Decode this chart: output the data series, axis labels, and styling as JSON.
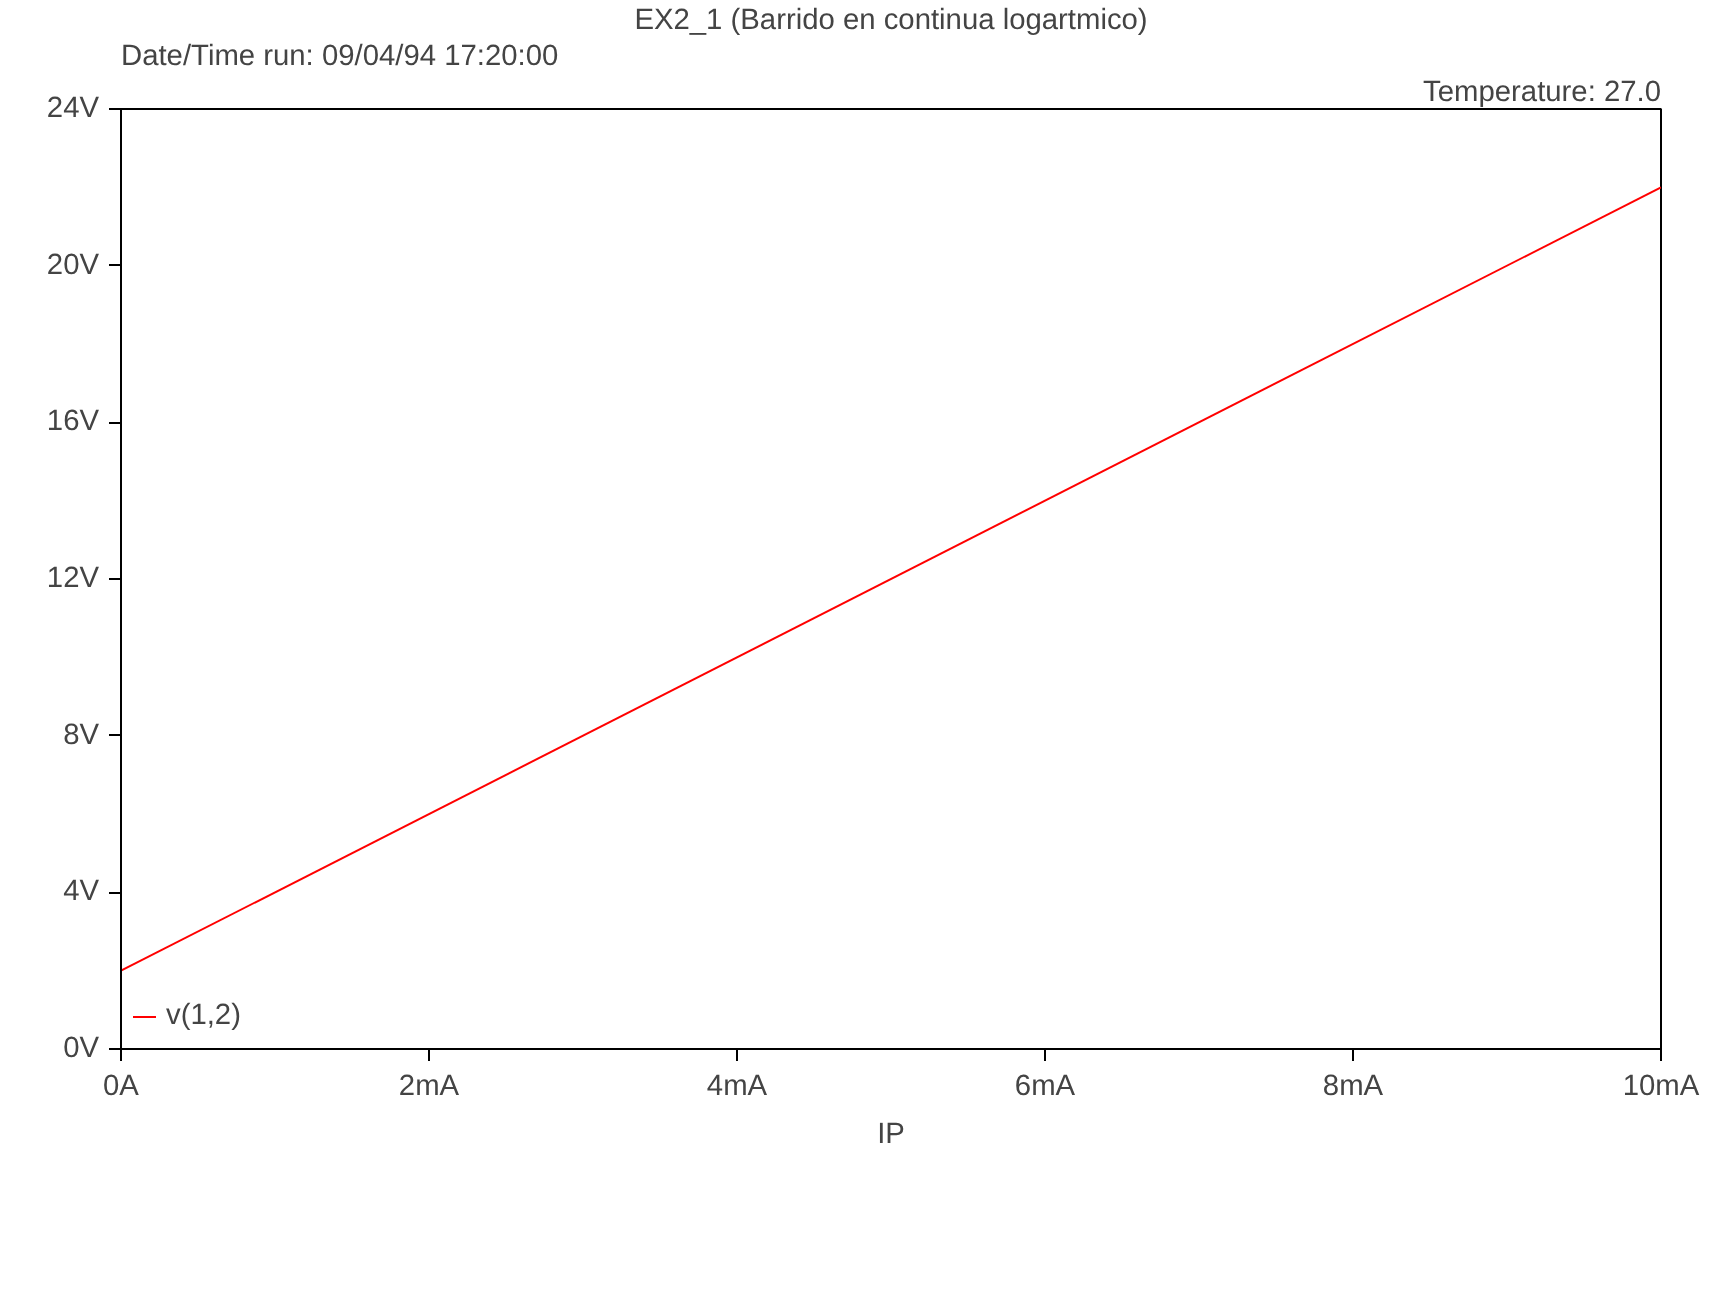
{
  "chart_data": {
    "type": "line",
    "title": "EX2_1 (Barrido en continua logartmico)",
    "annotations": [
      "Date/Time run: 09/04/94  17:20:00",
      "Temperature: 27.0"
    ],
    "xlabel": "IP",
    "x": [
      0,
      10
    ],
    "series": [
      {
        "name": "v(1,2)",
        "color": "#ff0000",
        "values": [
          2,
          22
        ]
      }
    ],
    "xlim": [
      0,
      10
    ],
    "xticks": [
      {
        "value": 0,
        "label": "0A"
      },
      {
        "value": 2,
        "label": "2mA"
      },
      {
        "value": 4,
        "label": "4mA"
      },
      {
        "value": 6,
        "label": "6mA"
      },
      {
        "value": 8,
        "label": "8mA"
      },
      {
        "value": 10,
        "label": "10mA"
      }
    ],
    "ylim": [
      0,
      24
    ],
    "yticks": [
      {
        "value": 0,
        "label": "0V"
      },
      {
        "value": 4,
        "label": "4V"
      },
      {
        "value": 8,
        "label": "8V"
      },
      {
        "value": 12,
        "label": "12V"
      },
      {
        "value": 16,
        "label": "16V"
      },
      {
        "value": 20,
        "label": "20V"
      },
      {
        "value": 24,
        "label": "24V"
      }
    ],
    "grid": false,
    "legend": "bottom left",
    "marker": "none",
    "line_style": "solid"
  }
}
